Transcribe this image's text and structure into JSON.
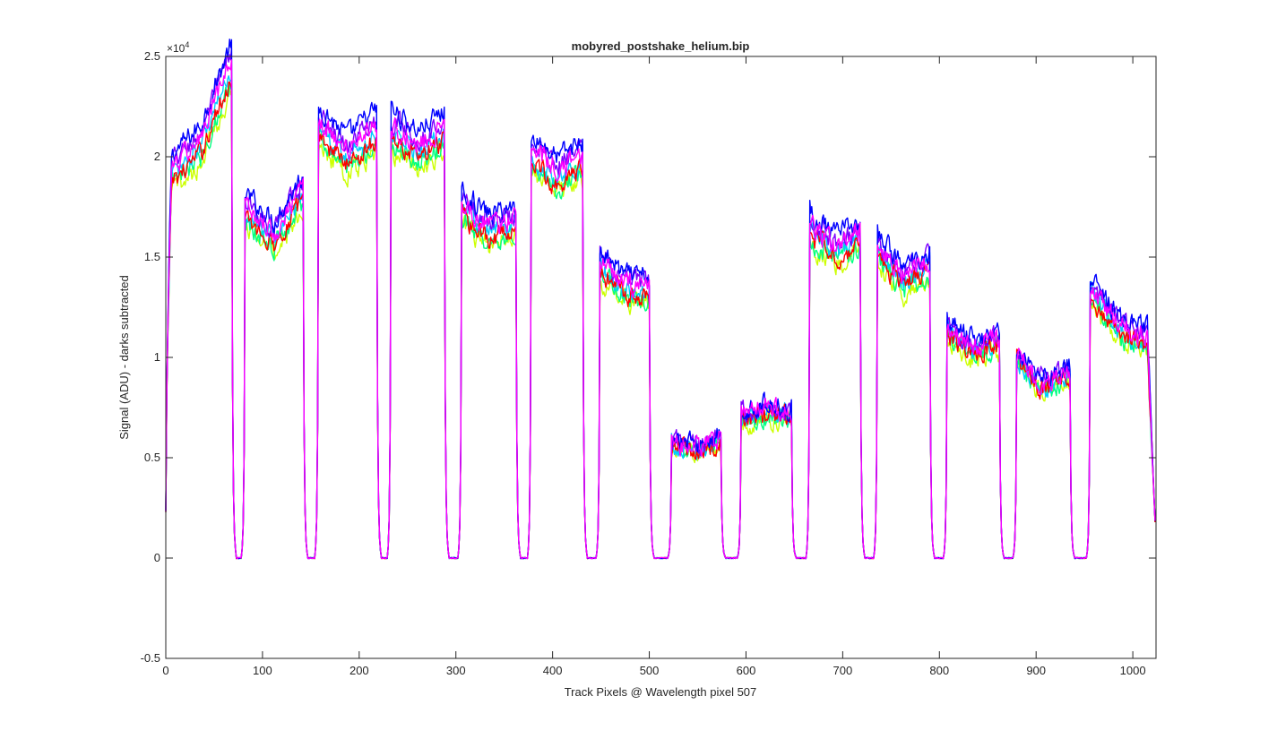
{
  "chart_data": {
    "type": "line",
    "title": "mobyred_postshake_helium.bip",
    "xlabel": "Track Pixels @ Wavelength pixel 507",
    "ylabel": "Signal (ADU) - darks subtracted",
    "y_exponent_label": "×10^4",
    "y_multiplier": 10000,
    "xlim": [
      0,
      1024
    ],
    "ylim": [
      -5000,
      25000
    ],
    "xticks": [
      0,
      100,
      200,
      300,
      400,
      500,
      600,
      700,
      800,
      900,
      1000
    ],
    "xtick_labels": [
      "0",
      "100",
      "200",
      "300",
      "400",
      "500",
      "600",
      "700",
      "800",
      "900",
      "1000"
    ],
    "yticks": [
      -5000,
      0,
      5000,
      10000,
      15000,
      20000,
      25000
    ],
    "ytick_labels": [
      "-0.5",
      "0",
      "0.5",
      "1",
      "1.5",
      "2",
      "2.5"
    ],
    "grid": false,
    "legend": "none",
    "series_colors": [
      "#0000ff",
      "#7f00ff",
      "#ff0000",
      "#00ccff",
      "#00ff80",
      "#ccff00",
      "#ff00ff"
    ],
    "series_offsets": [
      1.05,
      1.03,
      0.98,
      0.995,
      0.97,
      0.955,
      1.015
    ],
    "fibers": [
      {
        "x_start": 3,
        "x_end": 68,
        "y_start": 19000,
        "y_mid": 20500,
        "y_end": 24500
      },
      {
        "x_start": 82,
        "x_end": 142,
        "y_start": 17300,
        "y_mid": 16000,
        "y_end": 18200
      },
      {
        "x_start": 158,
        "x_end": 218,
        "y_start": 21500,
        "y_mid": 20000,
        "y_end": 21300
      },
      {
        "x_start": 233,
        "x_end": 288,
        "y_start": 21300,
        "y_mid": 20300,
        "y_end": 21200
      },
      {
        "x_start": 306,
        "x_end": 362,
        "y_start": 17400,
        "y_mid": 16300,
        "y_end": 16700
      },
      {
        "x_start": 378,
        "x_end": 431,
        "y_start": 20200,
        "y_mid": 19000,
        "y_end": 19800
      },
      {
        "x_start": 449,
        "x_end": 500,
        "y_start": 14600,
        "y_mid": 13400,
        "y_end": 13300
      },
      {
        "x_start": 523,
        "x_end": 574,
        "y_start": 5700,
        "y_mid": 5400,
        "y_end": 5800
      },
      {
        "x_start": 595,
        "x_end": 647,
        "y_start": 7000,
        "y_mid": 7300,
        "y_end": 7100
      },
      {
        "x_start": 666,
        "x_end": 718,
        "y_start": 16400,
        "y_mid": 15300,
        "y_end": 15900
      },
      {
        "x_start": 736,
        "x_end": 790,
        "y_start": 15400,
        "y_mid": 13800,
        "y_end": 14600
      },
      {
        "x_start": 808,
        "x_end": 862,
        "y_start": 11300,
        "y_mid": 10400,
        "y_end": 10800
      },
      {
        "x_start": 880,
        "x_end": 935,
        "y_start": 9900,
        "y_mid": 8600,
        "y_end": 9200
      },
      {
        "x_start": 956,
        "x_end": 1020,
        "y_start": 13300,
        "y_mid": 11300,
        "y_end": 10800
      }
    ],
    "gap_level": 0,
    "start_value": 2300,
    "end_value": 700
  }
}
